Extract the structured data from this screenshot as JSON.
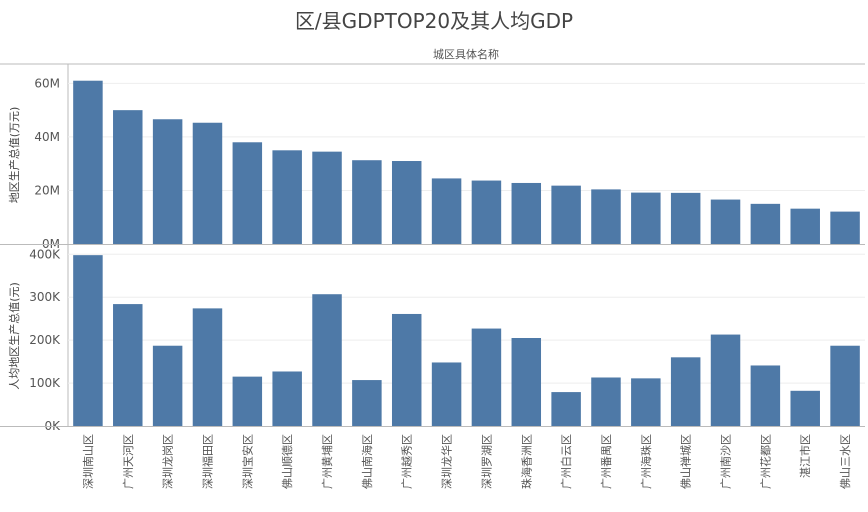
{
  "title": "区/县GDPTOP20及其人均GDP",
  "header_label": "城区具体名称",
  "colors": {
    "bar": "#4e79a7",
    "grid": "#eeeeee",
    "axis": "#bbbbbb",
    "text": "#555555"
  },
  "chart_data": [
    {
      "type": "bar",
      "ylabel": "地区生产总值(万元)",
      "ylim": [
        0,
        65000000
      ],
      "yticks": [
        0,
        20000000,
        40000000,
        60000000
      ],
      "ytick_labels": [
        "0M",
        "20M",
        "40M",
        "60M"
      ],
      "categories": [
        "深圳南山区",
        "广州天河区",
        "深圳龙岗区",
        "深圳福田区",
        "深圳宝安区",
        "佛山顺德区",
        "广州黄埔区",
        "佛山南海区",
        "广州越秀区",
        "深圳龙华区",
        "深圳罗湖区",
        "珠海香洲区",
        "广州白云区",
        "广州番禺区",
        "广州海珠区",
        "佛山禅城区",
        "广州南沙区",
        "广州花都区",
        "湛江市区",
        "佛山三水区"
      ],
      "values": [
        61000000,
        50000000,
        46600000,
        45300000,
        38000000,
        35000000,
        34500000,
        31300000,
        31000000,
        24500000,
        23700000,
        22800000,
        21800000,
        20400000,
        19200000,
        19100000,
        16600000,
        15000000,
        13200000,
        12100000
      ]
    },
    {
      "type": "bar",
      "ylabel": "人均地区生产总值(元)",
      "ylim": [
        0,
        410000
      ],
      "yticks": [
        0,
        100000,
        200000,
        300000,
        400000
      ],
      "ytick_labels": [
        "0K",
        "100K",
        "200K",
        "300K",
        "400K"
      ],
      "categories": [
        "深圳南山区",
        "广州天河区",
        "深圳龙岗区",
        "深圳福田区",
        "深圳宝安区",
        "佛山顺德区",
        "广州黄埔区",
        "佛山南海区",
        "广州越秀区",
        "深圳龙华区",
        "深圳罗湖区",
        "珠海香洲区",
        "广州白云区",
        "广州番禺区",
        "广州海珠区",
        "佛山禅城区",
        "广州南沙区",
        "广州花都区",
        "湛江市区",
        "佛山三水区"
      ],
      "values": [
        398000,
        284000,
        187000,
        274000,
        115000,
        127000,
        307000,
        107000,
        261000,
        148000,
        227000,
        205000,
        79000,
        113000,
        111000,
        160000,
        213000,
        141000,
        82000,
        187000
      ]
    }
  ]
}
